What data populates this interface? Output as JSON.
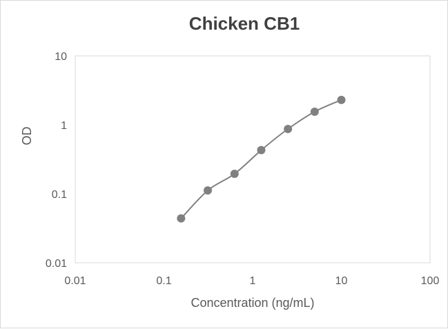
{
  "chart_data": {
    "type": "scatter",
    "title": "Chicken CB1",
    "xlabel": "Concentration (ng/mL)",
    "ylabel": "OD",
    "x_scale": "log",
    "y_scale": "log",
    "xlim": [
      0.01,
      100
    ],
    "ylim": [
      0.01,
      10
    ],
    "x_ticks": [
      0.01,
      0.1,
      1,
      10,
      100
    ],
    "x_tick_labels": [
      "0.01",
      "0.1",
      "1",
      "10",
      "100"
    ],
    "y_ticks": [
      0.01,
      0.1,
      1,
      10
    ],
    "y_tick_labels": [
      "0.01",
      "0.1",
      "1",
      "10"
    ],
    "grid": false,
    "legend": "none",
    "series": [
      {
        "x": [
          0.156,
          0.312,
          0.625,
          1.25,
          2.5,
          5,
          10
        ],
        "y": [
          0.044,
          0.112,
          0.195,
          0.43,
          0.87,
          1.55,
          2.3
        ],
        "marker_color": "#808080",
        "trendline_color": "#808080"
      }
    ]
  }
}
